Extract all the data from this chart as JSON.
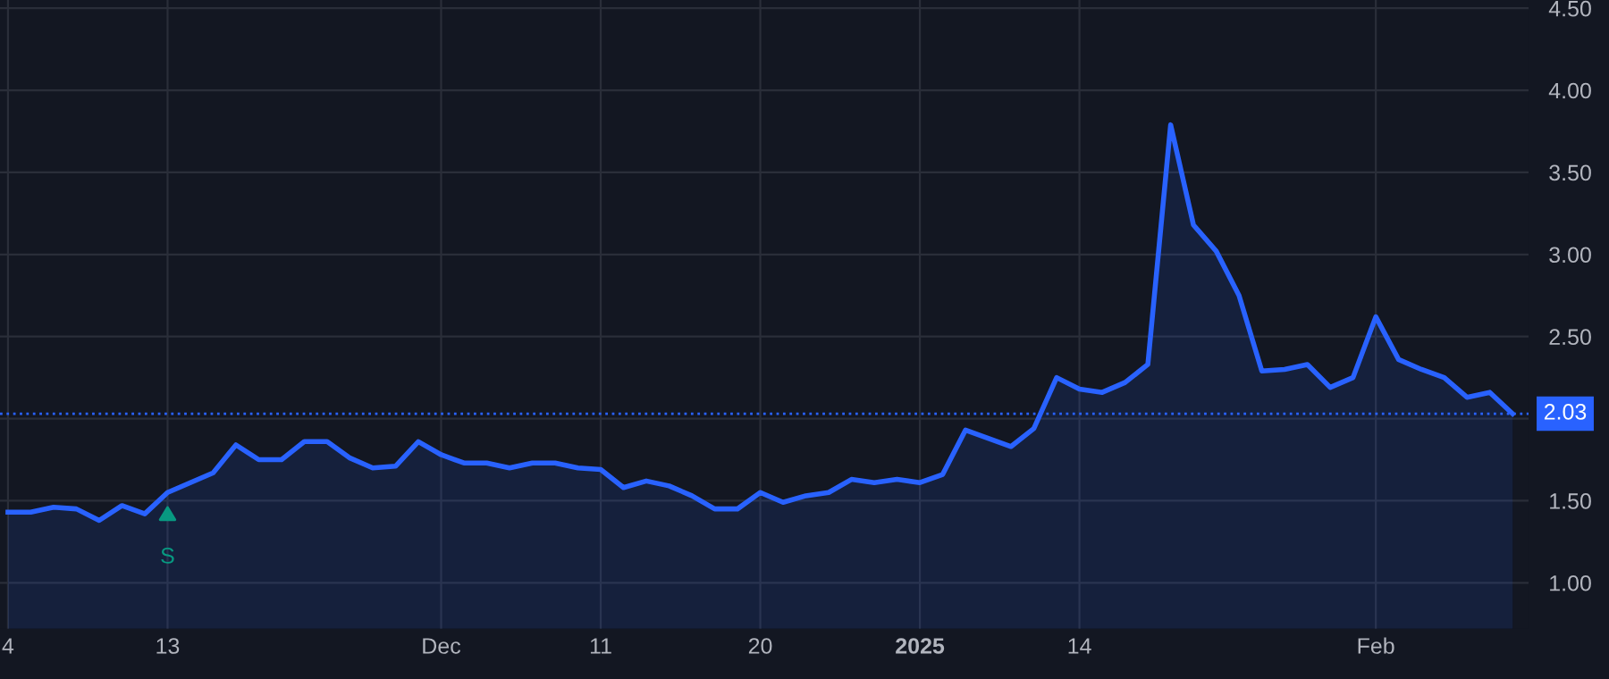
{
  "chart_data": {
    "type": "area",
    "categories": [
      "4",
      null,
      null,
      null,
      null,
      null,
      null,
      "13",
      null,
      null,
      null,
      null,
      null,
      null,
      null,
      null,
      null,
      null,
      null,
      "Dec",
      null,
      null,
      null,
      null,
      null,
      null,
      "11",
      null,
      null,
      null,
      null,
      null,
      null,
      "20",
      null,
      null,
      null,
      null,
      null,
      null,
      "2025",
      null,
      null,
      null,
      null,
      null,
      null,
      "14",
      null,
      null,
      null,
      null,
      null,
      null,
      null,
      null,
      null,
      null,
      null,
      null,
      "Feb",
      null,
      null,
      null,
      null,
      null,
      null
    ],
    "series": [
      {
        "color": "#2962ff",
        "values": [
          1.43,
          1.43,
          1.46,
          1.45,
          1.38,
          1.47,
          1.42,
          1.55,
          1.61,
          1.67,
          1.84,
          1.75,
          1.75,
          1.86,
          1.86,
          1.76,
          1.7,
          1.71,
          1.86,
          1.78,
          1.73,
          1.73,
          1.7,
          1.73,
          1.73,
          1.7,
          1.69,
          1.58,
          1.62,
          1.59,
          1.53,
          1.45,
          1.45,
          1.55,
          1.49,
          1.53,
          1.55,
          1.63,
          1.61,
          1.63,
          1.61,
          1.66,
          1.93,
          1.88,
          1.83,
          1.94,
          2.25,
          2.18,
          2.16,
          2.22,
          2.33,
          3.79,
          3.18,
          3.02,
          2.75,
          2.29,
          2.3,
          2.33,
          2.19,
          2.25,
          2.62,
          2.36,
          2.3,
          2.25,
          2.13,
          2.16,
          2.03
        ]
      }
    ],
    "ylim": [
      0.72,
      4.55
    ],
    "yticks": [
      {
        "value": 1,
        "label": "1.00"
      },
      {
        "value": 1.5,
        "label": "1.50"
      },
      {
        "value": 2,
        "label": null
      },
      {
        "value": 2.5,
        "label": "2.50"
      },
      {
        "value": 3,
        "label": "3.00"
      },
      {
        "value": 3.5,
        "label": "3.50"
      },
      {
        "value": 4,
        "label": "4.00"
      },
      {
        "value": 4.5,
        "label": "4.50"
      }
    ],
    "ref_lines": [
      {
        "axis": "y",
        "value": 2.03,
        "label": "2.03",
        "color": "#2962ff",
        "line_style": "dotted"
      }
    ],
    "annotations": [
      {
        "text": "S",
        "x": "13",
        "y": 1.55
      }
    ],
    "grid": true,
    "marker": "none",
    "line_style": "solid"
  }
}
